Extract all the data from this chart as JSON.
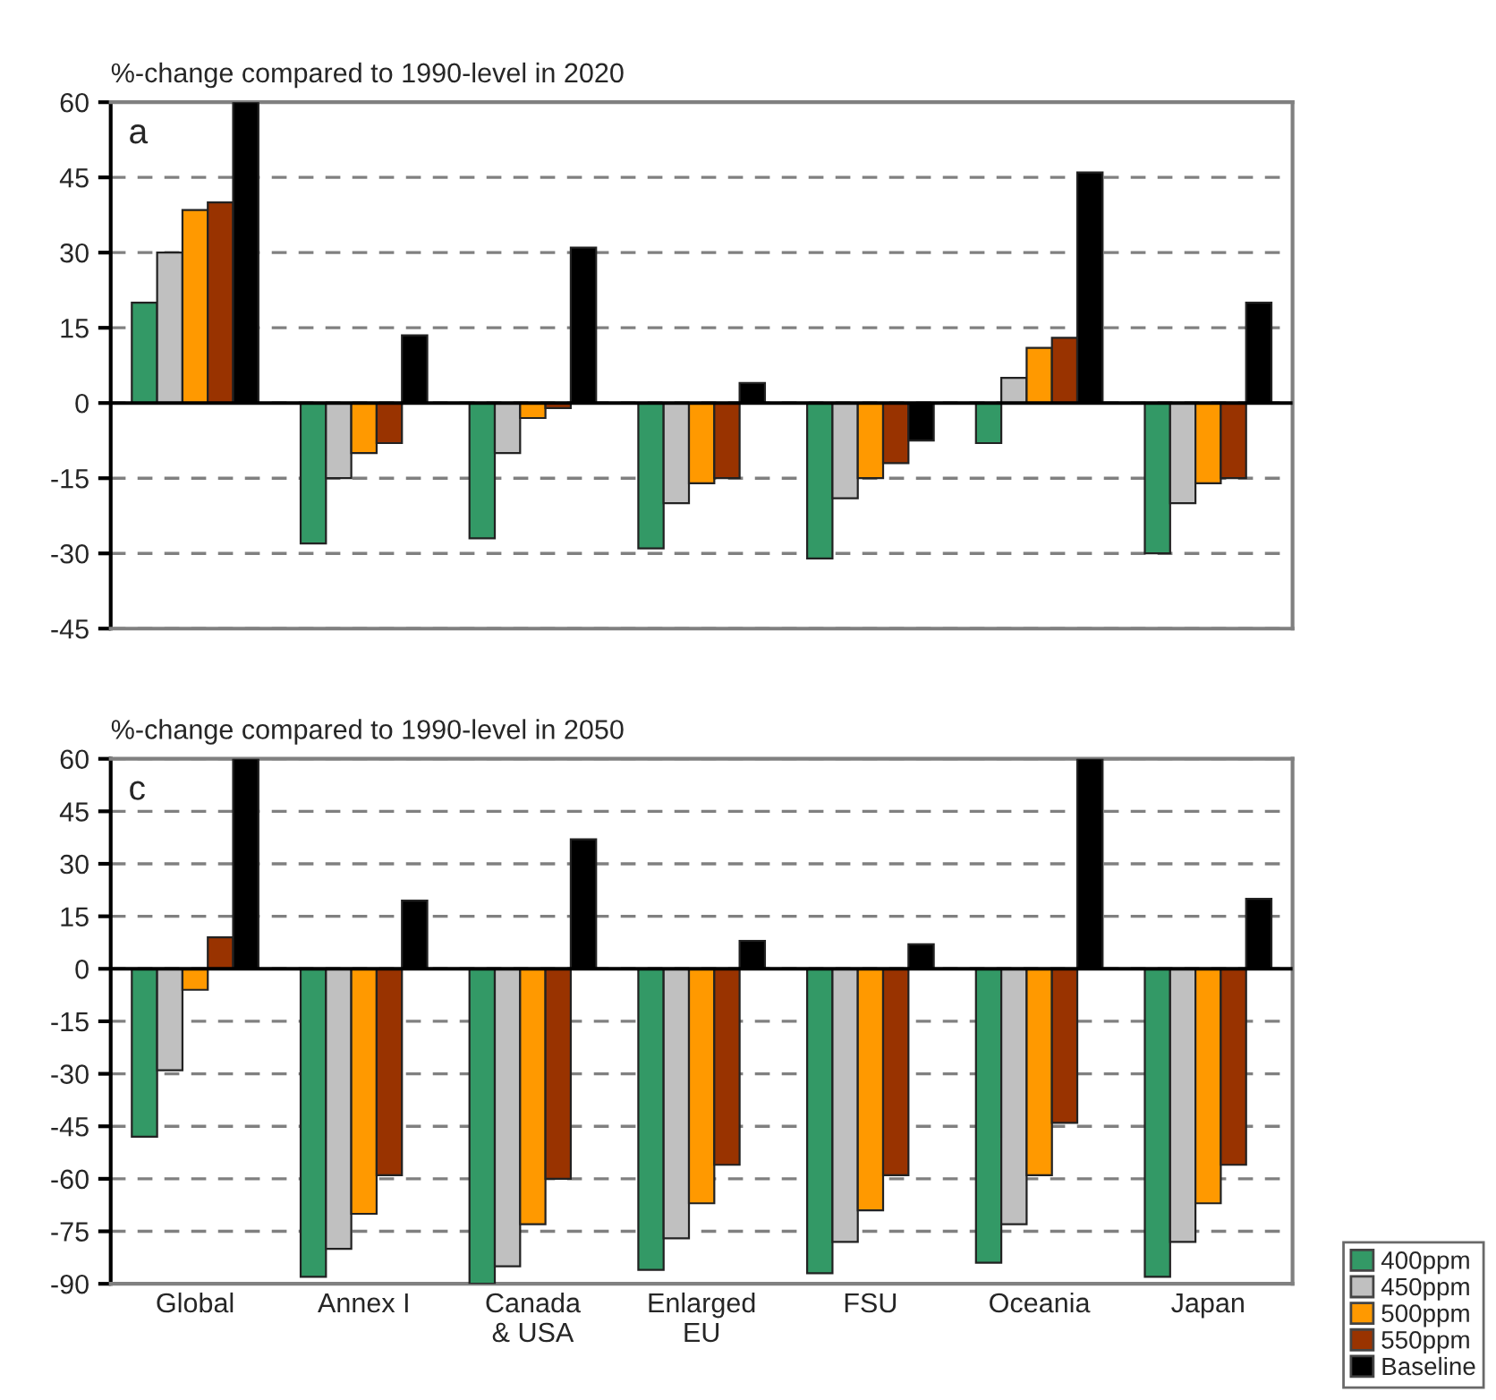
{
  "chart_data": [
    {
      "type": "bar",
      "title": "%-change compared to 1990-level in 2020",
      "annotations": [
        "a"
      ],
      "categories": [
        null,
        null,
        null,
        null,
        null,
        null,
        null
      ],
      "series": [
        {
          "color": "#339966",
          "values": [
            20,
            -28,
            -27,
            -29,
            -31,
            -8,
            -30
          ]
        },
        {
          "color": "#c0c0c0",
          "values": [
            30,
            -15,
            -10,
            -20,
            -19,
            5,
            -20
          ]
        },
        {
          "color": "#ff9900",
          "values": [
            38.5,
            -10,
            -3,
            -16,
            -15,
            11,
            -16
          ]
        },
        {
          "color": "#993300",
          "values": [
            40,
            -8,
            -1,
            -15,
            -12,
            13,
            -15
          ]
        },
        {
          "color": "#000000",
          "values": [
            60,
            13.5,
            31,
            4,
            -7.5,
            46,
            20
          ]
        }
      ],
      "ylim": [
        -45,
        60
      ],
      "yticks": [
        -45,
        -30,
        -15,
        0,
        15,
        30,
        45,
        60
      ],
      "grid": "y",
      "tick_labels": "y",
      "legend": false
    },
    {
      "type": "bar",
      "title": "%-change compared to 1990-level in 2050",
      "annotations": [
        "c"
      ],
      "categories": [
        "Global",
        "Annex I",
        "Canada\n& USA",
        "Enlarged\nEU",
        "FSU",
        "Oceania",
        "Japan"
      ],
      "series": [
        {
          "name": "400ppm",
          "color": "#339966",
          "values": [
            -48,
            -88,
            -90,
            -86,
            -87,
            -84,
            -88
          ]
        },
        {
          "name": "450ppm",
          "color": "#c0c0c0",
          "values": [
            -29,
            -80,
            -85,
            -77,
            -78,
            -73,
            -78
          ]
        },
        {
          "name": "500ppm",
          "color": "#ff9900",
          "values": [
            -6,
            -70,
            -73,
            -67,
            -69,
            -59,
            -67
          ]
        },
        {
          "name": "550ppm",
          "color": "#993300",
          "values": [
            9,
            -59,
            -60,
            -56,
            -59,
            -44,
            -56
          ]
        },
        {
          "name": "Baseline",
          "color": "#000000",
          "values": [
            60,
            19.5,
            37,
            8,
            7,
            60,
            20
          ]
        }
      ],
      "ylim": [
        -90,
        60
      ],
      "yticks": [
        -90,
        -75,
        -60,
        -45,
        -30,
        -15,
        0,
        15,
        30,
        45,
        60
      ],
      "grid": "y",
      "legend": "bottom right"
    }
  ]
}
